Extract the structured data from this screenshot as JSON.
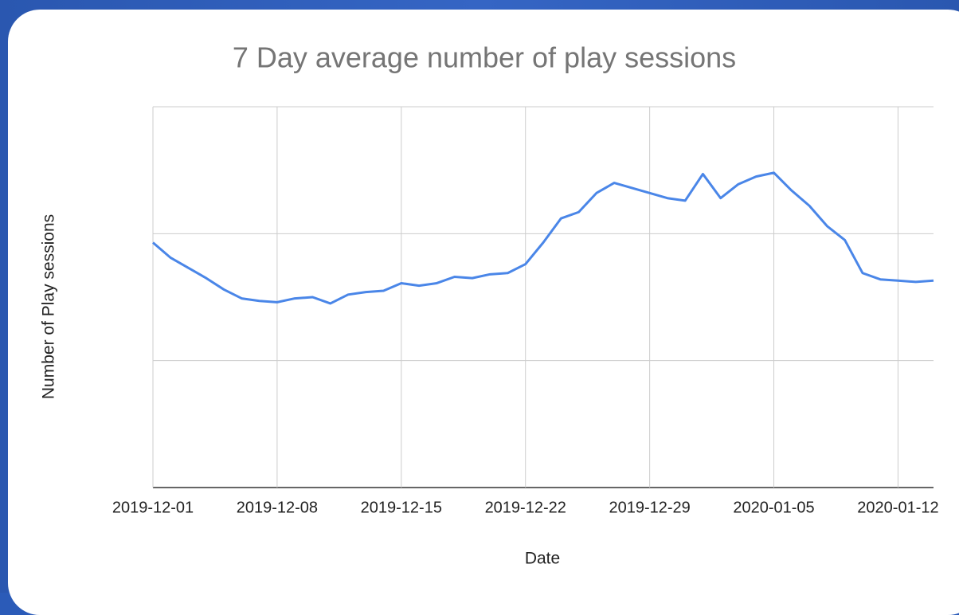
{
  "chart_data": {
    "type": "line",
    "title": "7 Day average number of play sessions",
    "x_label": "Date",
    "y_label": "Number of Play sessions",
    "x": [
      "2019-12-01",
      "2019-12-02",
      "2019-12-03",
      "2019-12-04",
      "2019-12-05",
      "2019-12-06",
      "2019-12-07",
      "2019-12-08",
      "2019-12-09",
      "2019-12-10",
      "2019-12-11",
      "2019-12-12",
      "2019-12-13",
      "2019-12-14",
      "2019-12-15",
      "2019-12-16",
      "2019-12-17",
      "2019-12-18",
      "2019-12-19",
      "2019-12-20",
      "2019-12-21",
      "2019-12-22",
      "2019-12-23",
      "2019-12-24",
      "2019-12-25",
      "2019-12-26",
      "2019-12-27",
      "2019-12-28",
      "2019-12-29",
      "2019-12-30",
      "2019-12-31",
      "2020-01-01",
      "2020-01-02",
      "2020-01-03",
      "2020-01-04",
      "2020-01-05",
      "2020-01-06",
      "2020-01-07",
      "2020-01-08",
      "2020-01-09",
      "2020-01-10",
      "2020-01-11",
      "2020-01-12",
      "2020-01-13",
      "2020-01-14"
    ],
    "series": [
      {
        "name": "Number of Play sessions",
        "color": "#4a86e8",
        "values": [
          1.93,
          1.81,
          1.73,
          1.65,
          1.56,
          1.49,
          1.47,
          1.46,
          1.49,
          1.5,
          1.45,
          1.52,
          1.54,
          1.55,
          1.61,
          1.59,
          1.61,
          1.66,
          1.65,
          1.68,
          1.69,
          1.76,
          1.93,
          2.12,
          2.17,
          2.32,
          2.4,
          2.36,
          2.32,
          2.28,
          2.26,
          2.47,
          2.28,
          2.39,
          2.45,
          2.48,
          2.34,
          2.22,
          2.06,
          1.95,
          1.69,
          1.64,
          1.63,
          1.62,
          1.63
        ]
      }
    ],
    "xlim": [
      "2019-12-01",
      "2020-01-14"
    ],
    "xticks": [
      "2019-12-01",
      "2019-12-08",
      "2019-12-15",
      "2019-12-22",
      "2019-12-29",
      "2020-01-05",
      "2020-01-12"
    ],
    "ylim": [
      0,
      3
    ],
    "yticks": [
      0,
      1,
      2,
      3
    ],
    "grid": true
  }
}
